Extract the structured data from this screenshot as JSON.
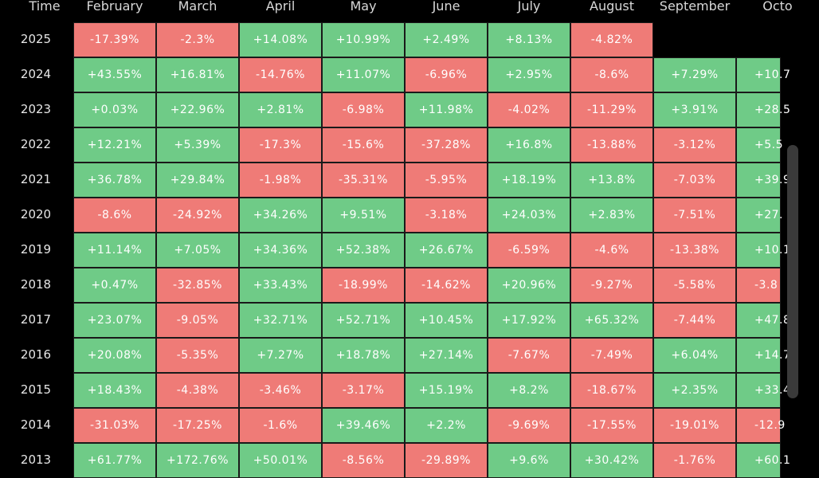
{
  "chart_data": {
    "type": "heatmap",
    "row_header": "Time",
    "columns": [
      "February",
      "March",
      "April",
      "May",
      "June",
      "July",
      "August",
      "September",
      "Octo"
    ],
    "colors": {
      "positive": "#6fcb87",
      "negative": "#ef7b77"
    },
    "rows": [
      {
        "year": "2025",
        "values": [
          "-17.39%",
          "-2.3%",
          "+14.08%",
          "+10.99%",
          "+2.49%",
          "+8.13%",
          "-4.82%",
          "",
          ""
        ]
      },
      {
        "year": "2024",
        "values": [
          "+43.55%",
          "+16.81%",
          "-14.76%",
          "+11.07%",
          "-6.96%",
          "+2.95%",
          "-8.6%",
          "+7.29%",
          "+10.7"
        ]
      },
      {
        "year": "2023",
        "values": [
          "+0.03%",
          "+22.96%",
          "+2.81%",
          "-6.98%",
          "+11.98%",
          "-4.02%",
          "-11.29%",
          "+3.91%",
          "+28.5"
        ]
      },
      {
        "year": "2022",
        "values": [
          "+12.21%",
          "+5.39%",
          "-17.3%",
          "-15.6%",
          "-37.28%",
          "+16.8%",
          "-13.88%",
          "-3.12%",
          "+5.5"
        ]
      },
      {
        "year": "2021",
        "values": [
          "+36.78%",
          "+29.84%",
          "-1.98%",
          "-35.31%",
          "-5.95%",
          "+18.19%",
          "+13.8%",
          "-7.03%",
          "+39.9"
        ]
      },
      {
        "year": "2020",
        "values": [
          "-8.6%",
          "-24.92%",
          "+34.26%",
          "+9.51%",
          "-3.18%",
          "+24.03%",
          "+2.83%",
          "-7.51%",
          "+27."
        ]
      },
      {
        "year": "2019",
        "values": [
          "+11.14%",
          "+7.05%",
          "+34.36%",
          "+52.38%",
          "+26.67%",
          "-6.59%",
          "-4.6%",
          "-13.38%",
          "+10.1"
        ]
      },
      {
        "year": "2018",
        "values": [
          "+0.47%",
          "-32.85%",
          "+33.43%",
          "-18.99%",
          "-14.62%",
          "+20.96%",
          "-9.27%",
          "-5.58%",
          "-3.8"
        ]
      },
      {
        "year": "2017",
        "values": [
          "+23.07%",
          "-9.05%",
          "+32.71%",
          "+52.71%",
          "+10.45%",
          "+17.92%",
          "+65.32%",
          "-7.44%",
          "+47.8"
        ]
      },
      {
        "year": "2016",
        "values": [
          "+20.08%",
          "-5.35%",
          "+7.27%",
          "+18.78%",
          "+27.14%",
          "-7.67%",
          "-7.49%",
          "+6.04%",
          "+14.7"
        ]
      },
      {
        "year": "2015",
        "values": [
          "+18.43%",
          "-4.38%",
          "-3.46%",
          "-3.17%",
          "+15.19%",
          "+8.2%",
          "-18.67%",
          "+2.35%",
          "+33.4"
        ]
      },
      {
        "year": "2014",
        "values": [
          "-31.03%",
          "-17.25%",
          "-1.6%",
          "+39.46%",
          "+2.2%",
          "-9.69%",
          "-17.55%",
          "-19.01%",
          "-12.9"
        ]
      },
      {
        "year": "2013",
        "values": [
          "+61.77%",
          "+172.76%",
          "+50.01%",
          "-8.56%",
          "-29.89%",
          "+9.6%",
          "+30.42%",
          "-1.76%",
          "+60.1"
        ]
      }
    ]
  }
}
